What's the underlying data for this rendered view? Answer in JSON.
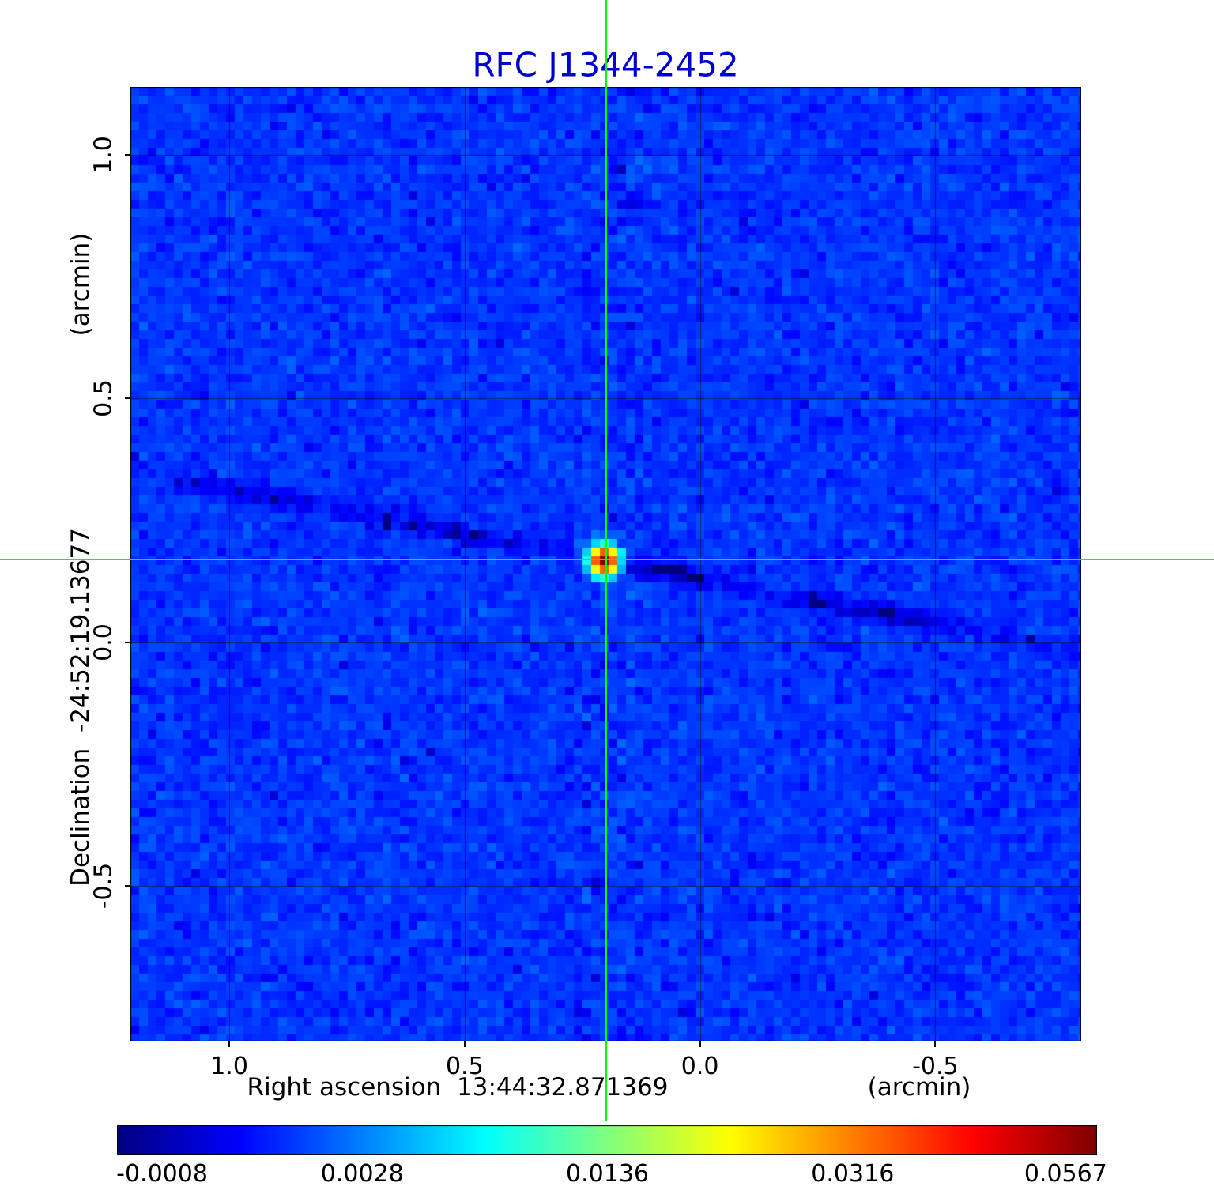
{
  "title_color": "#0000cd",
  "chart_data": {
    "type": "heatmap",
    "title": "RFC J1344-2452",
    "xlabel": "Right ascension  13:44:32.871369",
    "xunit": "(arcmin)",
    "ylabel": "Declination  -24:52:19.13677",
    "yunit": "(arcmin)",
    "xlim": [
      1.21,
      -0.81
    ],
    "ylim": [
      -0.82,
      1.14
    ],
    "x_ticks": [
      "1.0",
      "0.5",
      "0.0",
      "-0.5"
    ],
    "x_tick_values": [
      1.0,
      0.5,
      0.0,
      -0.5
    ],
    "y_ticks": [
      "1.0",
      "0.5",
      "0.0",
      "-0.5"
    ],
    "y_tick_values": [
      1.0,
      0.5,
      0.0,
      -0.5
    ],
    "grid": true,
    "colormap": "jet",
    "scale": "sqrt",
    "vmin": -0.0008,
    "vmax": 0.0567,
    "colorbar_ticks": [
      "-0.0008",
      "0.0028",
      "0.0136",
      "0.0316",
      "0.0567"
    ],
    "colorbar_tick_values": [
      -0.0008,
      0.0028,
      0.0136,
      0.0316,
      0.0567
    ],
    "background_mean": 0.001,
    "background_sigma": 0.0005,
    "source": {
      "ra_offset_arcmin": 0.2,
      "dec_offset_arcmin": 0.17,
      "peak": 0.0567
    },
    "crosshair": {
      "color": "#00ff00",
      "x": 0.2,
      "y": 0.17
    }
  }
}
